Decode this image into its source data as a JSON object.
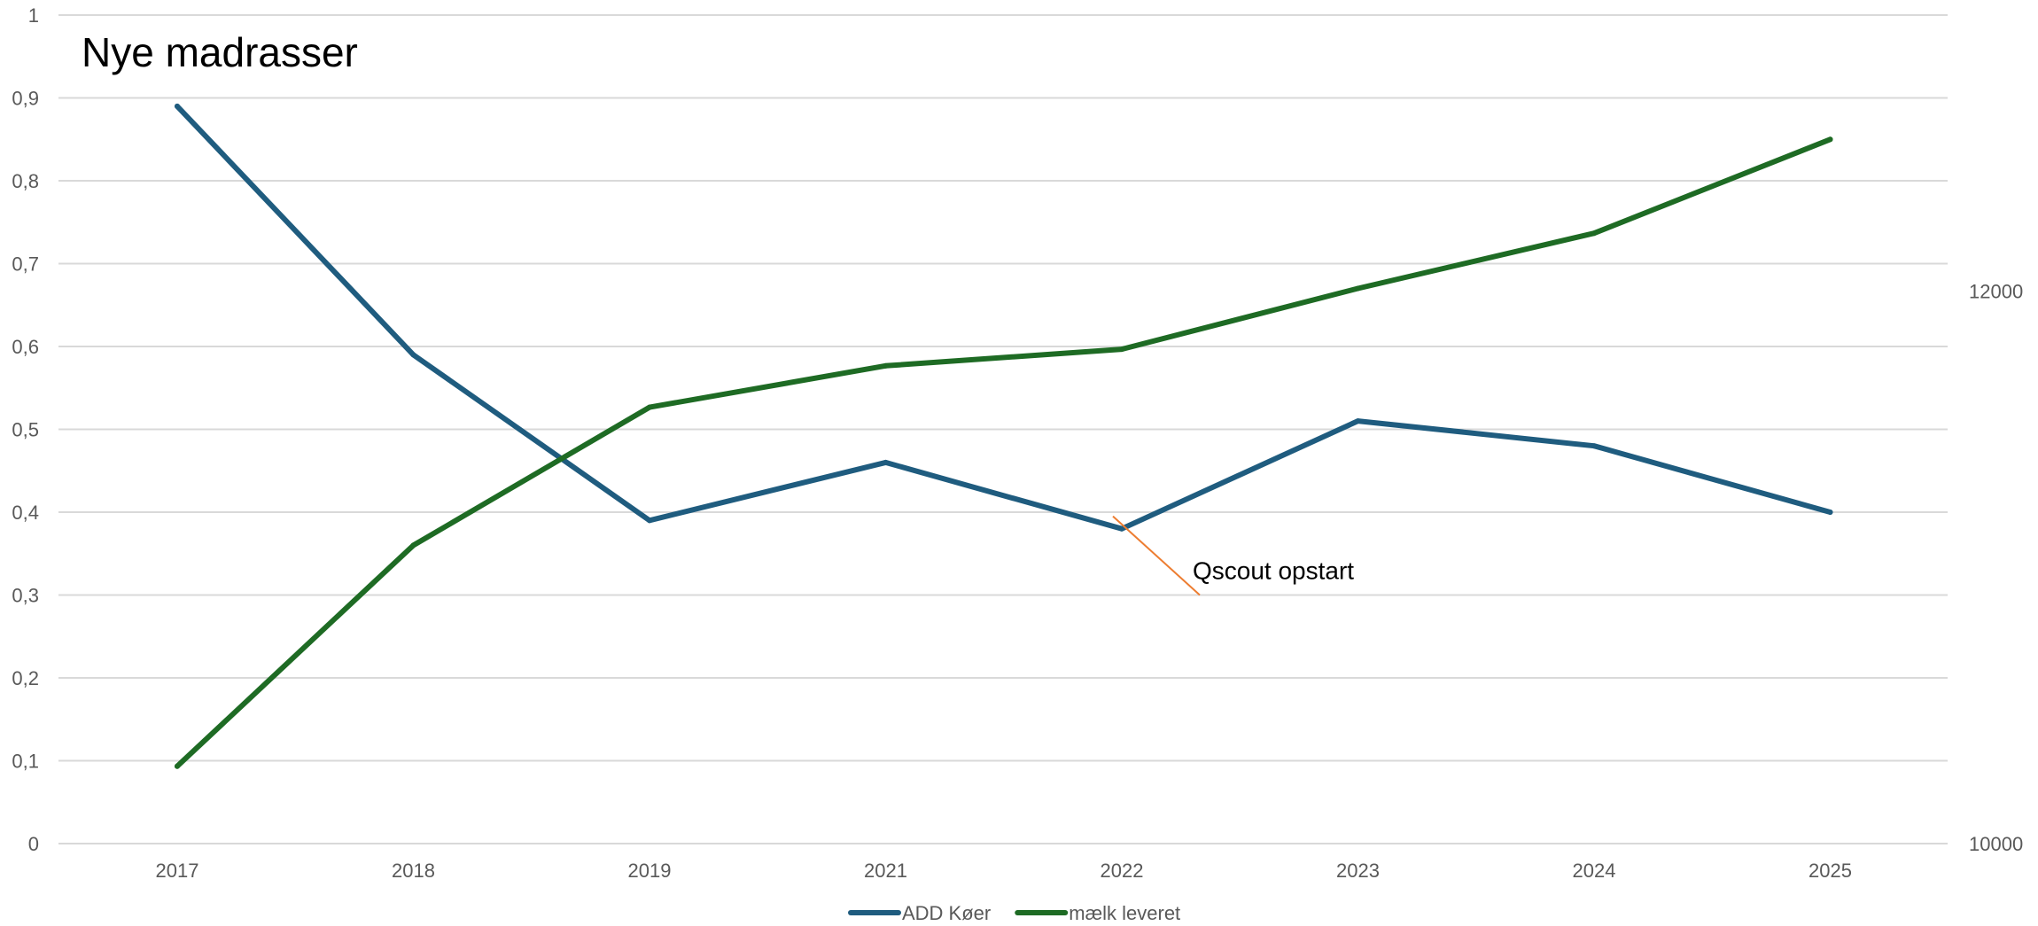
{
  "chart_data": {
    "type": "line",
    "title": "Nye madrasser",
    "categories": [
      "2017",
      "2018",
      "2019",
      "2021",
      "2022",
      "2023",
      "2024",
      "2025"
    ],
    "ylim": [
      0,
      1
    ],
    "y_ticks": [
      "0",
      "0,1",
      "0,2",
      "0,3",
      "0,4",
      "0,5",
      "0,6",
      "0,7",
      "0,8",
      "0,9",
      "1"
    ],
    "y2lim": [
      10000,
      13000
    ],
    "y2_ticks": [
      "10000",
      "12000"
    ],
    "grid": true,
    "legend_position": "bottom",
    "series": [
      {
        "name": "ADD Køer",
        "axis": "left",
        "color": "#1f5c7f",
        "values": [
          0.89,
          0.59,
          0.39,
          0.46,
          0.38,
          0.51,
          0.48,
          0.4
        ]
      },
      {
        "name": "mælk leveret",
        "axis": "right",
        "color": "#1e6b24",
        "values": [
          10280,
          11080,
          11580,
          11730,
          11790,
          12010,
          12210,
          12550
        ]
      }
    ],
    "annotation": {
      "text": "Qscout opstart",
      "category": "2022",
      "color": "#ed7d31"
    }
  }
}
